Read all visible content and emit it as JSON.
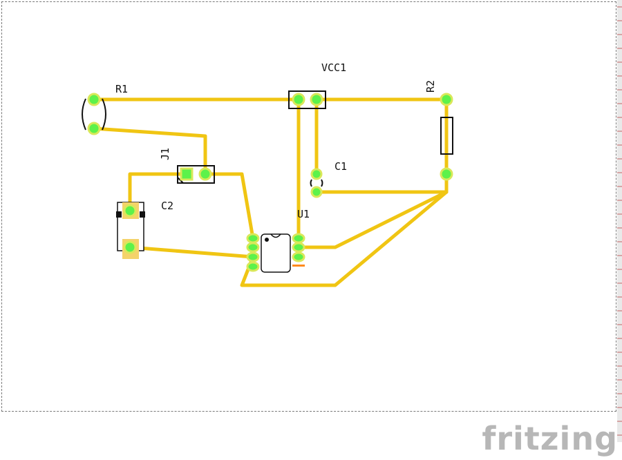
{
  "app": {
    "brand": "fritzing"
  },
  "colors": {
    "trace": "#f0c513",
    "pad": "#5df24a",
    "pad_ring": "#d9e85a",
    "silk": "#111111",
    "orange_mark": "#ff8a1d"
  },
  "components": {
    "r1": {
      "label": "R1"
    },
    "r2": {
      "label": "R2"
    },
    "vcc1": {
      "label": "VCC1"
    },
    "j1": {
      "label": "J1"
    },
    "c1": {
      "label": "C1"
    },
    "c2": {
      "label": "C2"
    },
    "u1": {
      "label": "U1"
    }
  }
}
